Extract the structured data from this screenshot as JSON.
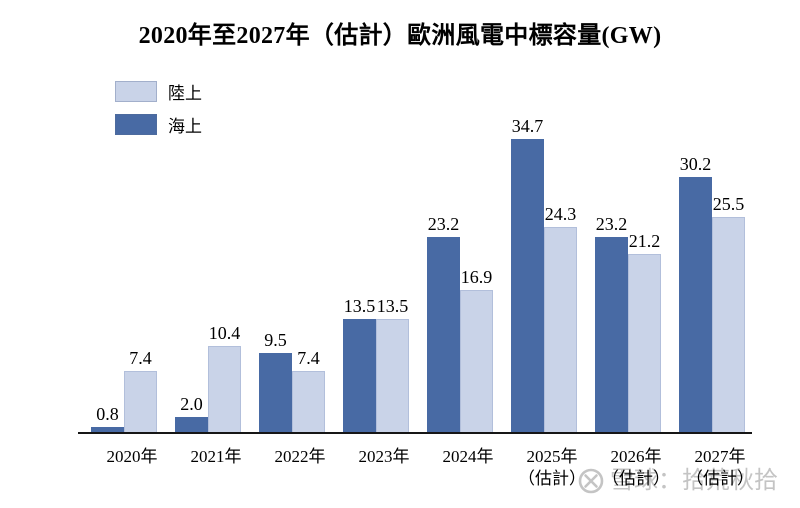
{
  "title": "2020年至2027年（估計）歐洲風電中標容量(GW)",
  "legend": {
    "items": [
      {
        "label": "陸上",
        "color": "#c9d3e8"
      },
      {
        "label": "海上",
        "color": "#486aa4"
      }
    ]
  },
  "watermark": {
    "logo": "xueqiu-snowball-icon",
    "text": "雪球：拾荒秋拾",
    "color": "#c4c4c4"
  },
  "chart_data": {
    "type": "bar",
    "title": "2020年至2027年（估計）歐洲風電中標容量(GW)",
    "unit": "GW",
    "categories": [
      "2020年",
      "2021年",
      "2022年",
      "2023年",
      "2024年",
      "2025年（估計）",
      "2026年（估計）",
      "2027年（估計）"
    ],
    "x_tick_lines": [
      [
        "2020年",
        ""
      ],
      [
        "2021年",
        ""
      ],
      [
        "2022年",
        ""
      ],
      [
        "2023年",
        ""
      ],
      [
        "2024年",
        ""
      ],
      [
        "2025年",
        "（估計）"
      ],
      [
        "2026年",
        "（估計）"
      ],
      [
        "2027年",
        "（估計）"
      ]
    ],
    "series": [
      {
        "name": "海上",
        "color": "#486aa4",
        "values": [
          0.8,
          2.0,
          9.5,
          13.5,
          23.2,
          34.7,
          23.2,
          30.2
        ],
        "labels": [
          "0.8",
          "2.0",
          "9.5",
          "13.5",
          "23.2",
          "34.7",
          "23.2",
          "30.2"
        ]
      },
      {
        "name": "陸上",
        "color": "#c9d3e8",
        "values": [
          7.4,
          10.4,
          7.4,
          13.5,
          16.9,
          24.3,
          21.2,
          25.5
        ],
        "labels": [
          "7.4",
          "10.4",
          "7.4",
          "13.5",
          "16.9",
          "24.3",
          "21.2",
          "25.5"
        ]
      }
    ],
    "ylim": [
      0,
      39.3
    ],
    "grid": false,
    "legend_position": "top-left",
    "value_labels": true
  }
}
